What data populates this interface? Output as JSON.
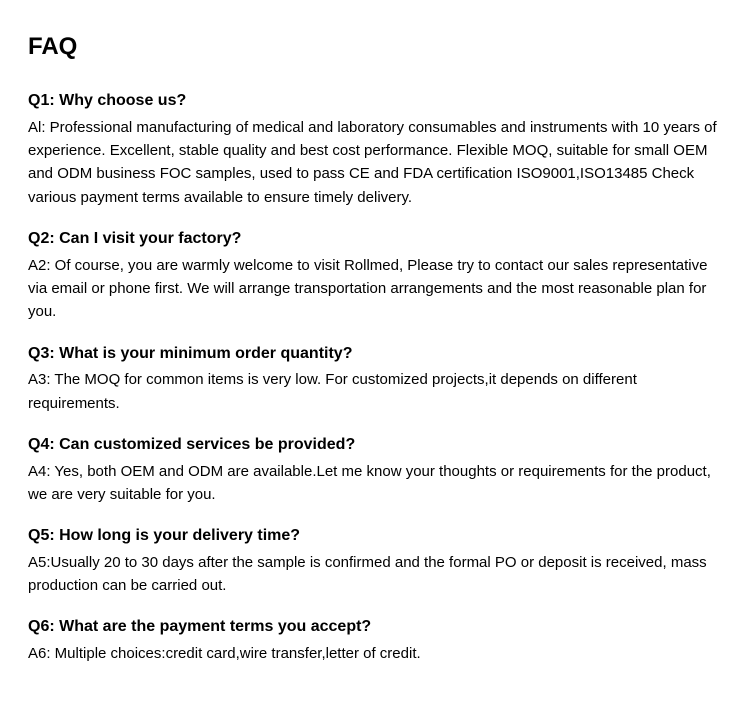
{
  "title": "FAQ",
  "title_fontsize": 24,
  "title_fontweight": 900,
  "body_fontsize": 15,
  "question_fontsize": 16,
  "question_fontweight": 700,
  "text_color": "#000000",
  "background_color": "#ffffff",
  "line_height": 1.55,
  "items": [
    {
      "q": "Q1: Why choose us?",
      "a": "Al: Professional manufacturing of medical and laboratory consumables and instruments with 10 years of experience. Excellent, stable quality and best cost performance. Flexible MOQ, suitable for small OEM and ODM business FOC samples, used to pass CE and FDA certification ISO9001,ISO13485 Check various payment terms available to ensure timely delivery."
    },
    {
      "q": "Q2: Can I visit your factory?",
      "a": "A2: Of course, you are warmly welcome to visit Rollmed, Please try to contact our sales representative via email or phone first. We will arrange transportation arrangements and the most reasonable plan for you."
    },
    {
      "q": "Q3: What is your minimum order quantity?",
      "a": "A3: The MOQ for common items is very low. For customized projects,it depends on different requirements."
    },
    {
      "q": "Q4: Can customized services be provided?",
      "a": "A4: Yes, both OEM and ODM are available.Let me know your thoughts or requirements for the product, we are very suitable for you."
    },
    {
      "q": "Q5: How long is your delivery time?",
      "a": "A5:Usually 20 to 30 days after the sample is confirmed and the formal PO or deposit is received, mass production can be carried out."
    },
    {
      "q": "Q6: What are the payment terms you accept?",
      "a": "A6: Multiple choices:credit card,wire transfer,letter of credit."
    }
  ]
}
